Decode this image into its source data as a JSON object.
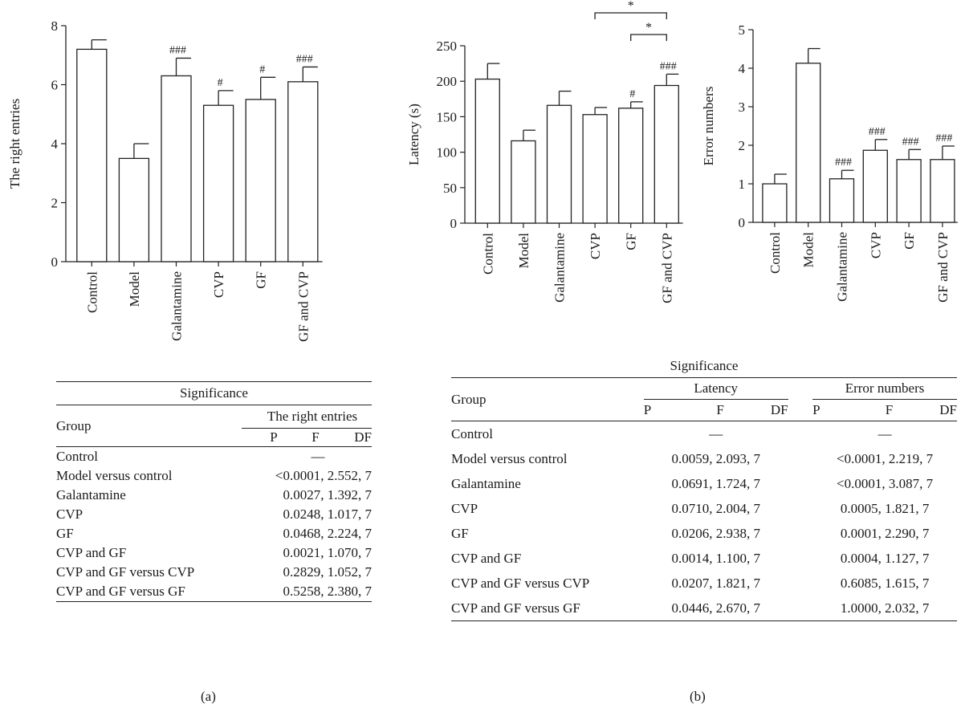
{
  "chart_data": [
    {
      "type": "bar",
      "panel": "a",
      "categories": [
        "Control",
        "Model",
        "Galantamine",
        "CVP",
        "GF",
        "GF and CVP"
      ],
      "values": [
        7.2,
        3.5,
        6.3,
        5.3,
        5.5,
        6.1
      ],
      "errors": [
        0.32,
        0.5,
        0.6,
        0.5,
        0.75,
        0.5
      ],
      "annotations": [
        "",
        "",
        "###",
        "#",
        "#",
        "###"
      ],
      "ylabel": "The right entries",
      "ylim": [
        0,
        8
      ],
      "yticks": [
        "0",
        "2",
        "4",
        "6",
        "8"
      ],
      "grid": false
    },
    {
      "type": "bar",
      "panel": "b",
      "categories": [
        "Control",
        "Model",
        "Galantamine",
        "CVP",
        "GF",
        "GF and CVP"
      ],
      "values": [
        203,
        116,
        166,
        153,
        162,
        194
      ],
      "errors": [
        22,
        15,
        20,
        10,
        9,
        16
      ],
      "annotations": [
        "",
        "",
        "",
        "",
        "#",
        "###"
      ],
      "comparisons": [
        {
          "from": "CVP",
          "to": "GF and CVP",
          "label": "*"
        },
        {
          "from": "GF",
          "to": "GF and CVP",
          "label": "*"
        }
      ],
      "ylabel": "Latency (s)",
      "ylim": [
        0,
        250
      ],
      "yticks": [
        "0",
        "50",
        "100",
        "150",
        "200",
        "250"
      ],
      "grid": false
    },
    {
      "type": "bar",
      "panel": "b",
      "categories": [
        "Control",
        "Model",
        "Galantamine",
        "CVP",
        "GF",
        "GF and CVP"
      ],
      "values": [
        1.0,
        4.13,
        1.13,
        1.87,
        1.63,
        1.63
      ],
      "errors": [
        0.25,
        0.38,
        0.22,
        0.28,
        0.26,
        0.35
      ],
      "annotations": [
        "",
        "",
        "###",
        "###",
        "###",
        "###"
      ],
      "ylabel": "Error numbers",
      "ylim": [
        0,
        5
      ],
      "yticks": [
        "0",
        "1",
        "2",
        "3",
        "4",
        "5"
      ],
      "grid": false
    }
  ],
  "table_a": {
    "caption": "Significance",
    "group_header": "Group",
    "measure": "The right entries",
    "subheaders": [
      "P",
      "F",
      "DF"
    ],
    "rows": [
      {
        "group": "Control",
        "value": "—"
      },
      {
        "group": "Model versus control",
        "value": "<0.0001, 2.552, 7"
      },
      {
        "group": "Galantamine",
        "value": "0.0027, 1.392, 7"
      },
      {
        "group": "CVP",
        "value": "0.0248, 1.017, 7"
      },
      {
        "group": "GF",
        "value": "0.0468, 2.224, 7"
      },
      {
        "group": "CVP and GF",
        "value": "0.0021, 1.070, 7"
      },
      {
        "group": "CVP and GF versus CVP",
        "value": "0.2829, 1.052, 7"
      },
      {
        "group": "CVP and GF versus GF",
        "value": "0.5258, 2.380, 7"
      }
    ]
  },
  "table_b": {
    "caption": "Significance",
    "group_header": "Group",
    "measures": [
      "Latency",
      "Error numbers"
    ],
    "subheaders": [
      "P",
      "F",
      "DF"
    ],
    "rows": [
      {
        "group": "Control",
        "latency": "—",
        "errors": "—"
      },
      {
        "group": "Model versus control",
        "latency": "0.0059, 2.093, 7",
        "errors": "<0.0001, 2.219, 7"
      },
      {
        "group": "Galantamine",
        "latency": "0.0691, 1.724, 7",
        "errors": "<0.0001, 3.087, 7"
      },
      {
        "group": "CVP",
        "latency": "0.0710, 2.004, 7",
        "errors": "0.0005, 1.821, 7"
      },
      {
        "group": "GF",
        "latency": "0.0206, 2.938, 7",
        "errors": "0.0001, 2.290, 7"
      },
      {
        "group": "CVP and GF",
        "latency": "0.0014, 1.100, 7",
        "errors": "0.0004, 1.127, 7"
      },
      {
        "group": "CVP and GF versus CVP",
        "latency": "0.0207, 1.821, 7",
        "errors": "0.6085, 1.615, 7"
      },
      {
        "group": "CVP and GF versus GF",
        "latency": "0.0446, 2.670, 7",
        "errors": "1.0000, 2.032, 7"
      }
    ]
  },
  "panel_labels": [
    "(a)",
    "(b)"
  ]
}
